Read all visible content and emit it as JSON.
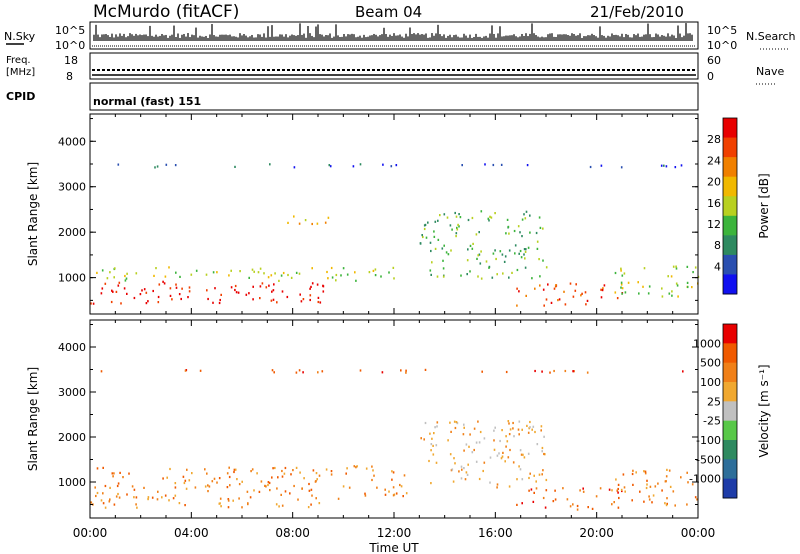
{
  "header": {
    "station": "McMurdo (fitACF)",
    "beam": "Beam 04",
    "date": "21/Feb/2010"
  },
  "top_panels": {
    "nsky_label": "N.Sky",
    "nsky_ticks": [
      "10^5",
      "10^0"
    ],
    "nsearch_label": "N.Search",
    "nsearch_ticks": [
      "10^5",
      "10^0"
    ],
    "freq_label_line1": "Freq.",
    "freq_label_line2": "[MHz]",
    "freq_ticks": [
      "18",
      "8"
    ],
    "nave_label": "Nave",
    "nave_ticks": [
      "60",
      "0"
    ],
    "cpid_label": "CPID",
    "cpid_value": "normal (fast) 151"
  },
  "colors": {
    "power_scale": [
      "#1010f0",
      "#2a4fb0",
      "#2e8a60",
      "#3cb43c",
      "#b8d020",
      "#f0b800",
      "#f08000",
      "#f04000",
      "#e80000"
    ],
    "velocity_scale": [
      "#1e3ca8",
      "#2d6e9a",
      "#2e8a60",
      "#58c848",
      "#c0c0c0",
      "#f0a830",
      "#f08018",
      "#f05a00",
      "#e80000"
    ]
  },
  "chart_data": [
    {
      "type": "heatmap",
      "name": "power",
      "ylabel": "Slant Range [km]",
      "xlabel": "",
      "yticks": [
        "1000",
        "2000",
        "3000",
        "4000"
      ],
      "ylim": [
        200,
        4600
      ],
      "xticks": [
        "00:00",
        "04:00",
        "08:00",
        "12:00",
        "16:00",
        "20:00",
        "00:00"
      ],
      "colorbar_label": "Power [dB]",
      "colorbar_ticks": [
        "28",
        "24",
        "20",
        "16",
        "12",
        "8",
        "4"
      ],
      "bands": [
        {
          "t0": 0,
          "t1": 9.8,
          "r0": 450,
          "r1": 950,
          "level": 8
        },
        {
          "t0": 0,
          "t1": 12.3,
          "r0": 950,
          "r1": 1250,
          "level": 4
        },
        {
          "t0": 13,
          "t1": 18,
          "r0": 1000,
          "r1": 2500,
          "level": 3
        },
        {
          "t0": 16.8,
          "t1": 21,
          "r0": 400,
          "r1": 900,
          "level": 7
        },
        {
          "t0": 20.5,
          "t1": 24,
          "r0": 600,
          "r1": 1300,
          "level": 4
        },
        {
          "t0": 0,
          "t1": 24,
          "r0": 3450,
          "r1": 3520,
          "level": 1
        },
        {
          "t0": 7.5,
          "t1": 9.5,
          "r0": 2200,
          "r1": 2450,
          "level": 5
        }
      ]
    },
    {
      "type": "heatmap",
      "name": "velocity",
      "ylabel": "Slant Range [km]",
      "xlabel": "Time UT",
      "yticks": [
        "1000",
        "2000",
        "3000",
        "4000"
      ],
      "ylim": [
        200,
        4600
      ],
      "xticks": [
        "00:00",
        "04:00",
        "08:00",
        "12:00",
        "16:00",
        "20:00",
        "00:00"
      ],
      "colorbar_label": "Velocity [m s⁻¹]",
      "colorbar_ticks": [
        "1000",
        "500",
        "100",
        "25",
        "-25",
        "-100",
        "-500",
        "-1000"
      ],
      "bands": [
        {
          "t0": 0,
          "t1": 10,
          "r0": 450,
          "r1": 1350,
          "level": 6
        },
        {
          "t0": 10,
          "t1": 12.5,
          "r0": 700,
          "r1": 1400,
          "level": 6
        },
        {
          "t0": 13,
          "t1": 18,
          "r0": 900,
          "r1": 2400,
          "level": 5
        },
        {
          "t0": 16.8,
          "t1": 21,
          "r0": 400,
          "r1": 900,
          "level": 7
        },
        {
          "t0": 20.5,
          "t1": 24,
          "r0": 500,
          "r1": 1300,
          "level": 6
        },
        {
          "t0": 0,
          "t1": 24,
          "r0": 3450,
          "r1": 3520,
          "level": 7
        }
      ]
    }
  ]
}
